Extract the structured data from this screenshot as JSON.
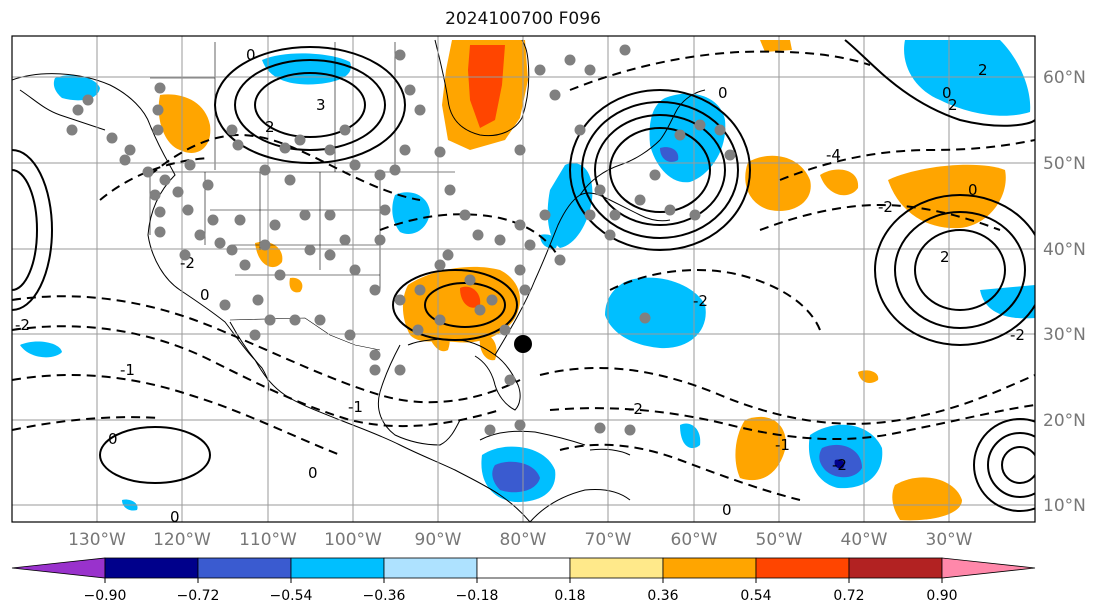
{
  "title": "2024100700 F096",
  "latitude_labels": [
    "60°N",
    "50°N",
    "40°N",
    "30°N",
    "20°N",
    "10°N"
  ],
  "longitude_labels": [
    "130°W",
    "120°W",
    "110°W",
    "100°W",
    "90°W",
    "80°W",
    "70°W",
    "60°W",
    "50°W",
    "40°W",
    "30°W"
  ],
  "colorbar": {
    "ticks": [
      "−0.90",
      "−0.72",
      "−0.54",
      "−0.36",
      "−0.18",
      "0.18",
      "0.36",
      "0.54",
      "0.72",
      "0.90"
    ],
    "colors": [
      "#9932cc",
      "#00008b",
      "#3a5bd0",
      "#00bfff",
      "#aee2ff",
      "#ffffff",
      "#ffe98a",
      "#ffa500",
      "#ff4500",
      "#b22222",
      "#ff88aa"
    ]
  },
  "contour_labels": [
    "0",
    "2",
    "3",
    "-4",
    "0",
    "-2",
    "0",
    "-2",
    "0",
    "2",
    "-2",
    "-1",
    "0",
    "2",
    "-2",
    "-1",
    "0",
    "-2",
    "0",
    "-1",
    "-2",
    "0",
    "0",
    "2",
    "-2"
  ],
  "fill_colors": {
    "orange": "#ffa500",
    "red_orange": "#ff4500",
    "light_blue": "#00bfff",
    "mid_blue": "#3a5bd0",
    "dark_blue": "#00008b"
  },
  "station_marker_color": "#808080",
  "highlight_marker_color": "#000000"
}
